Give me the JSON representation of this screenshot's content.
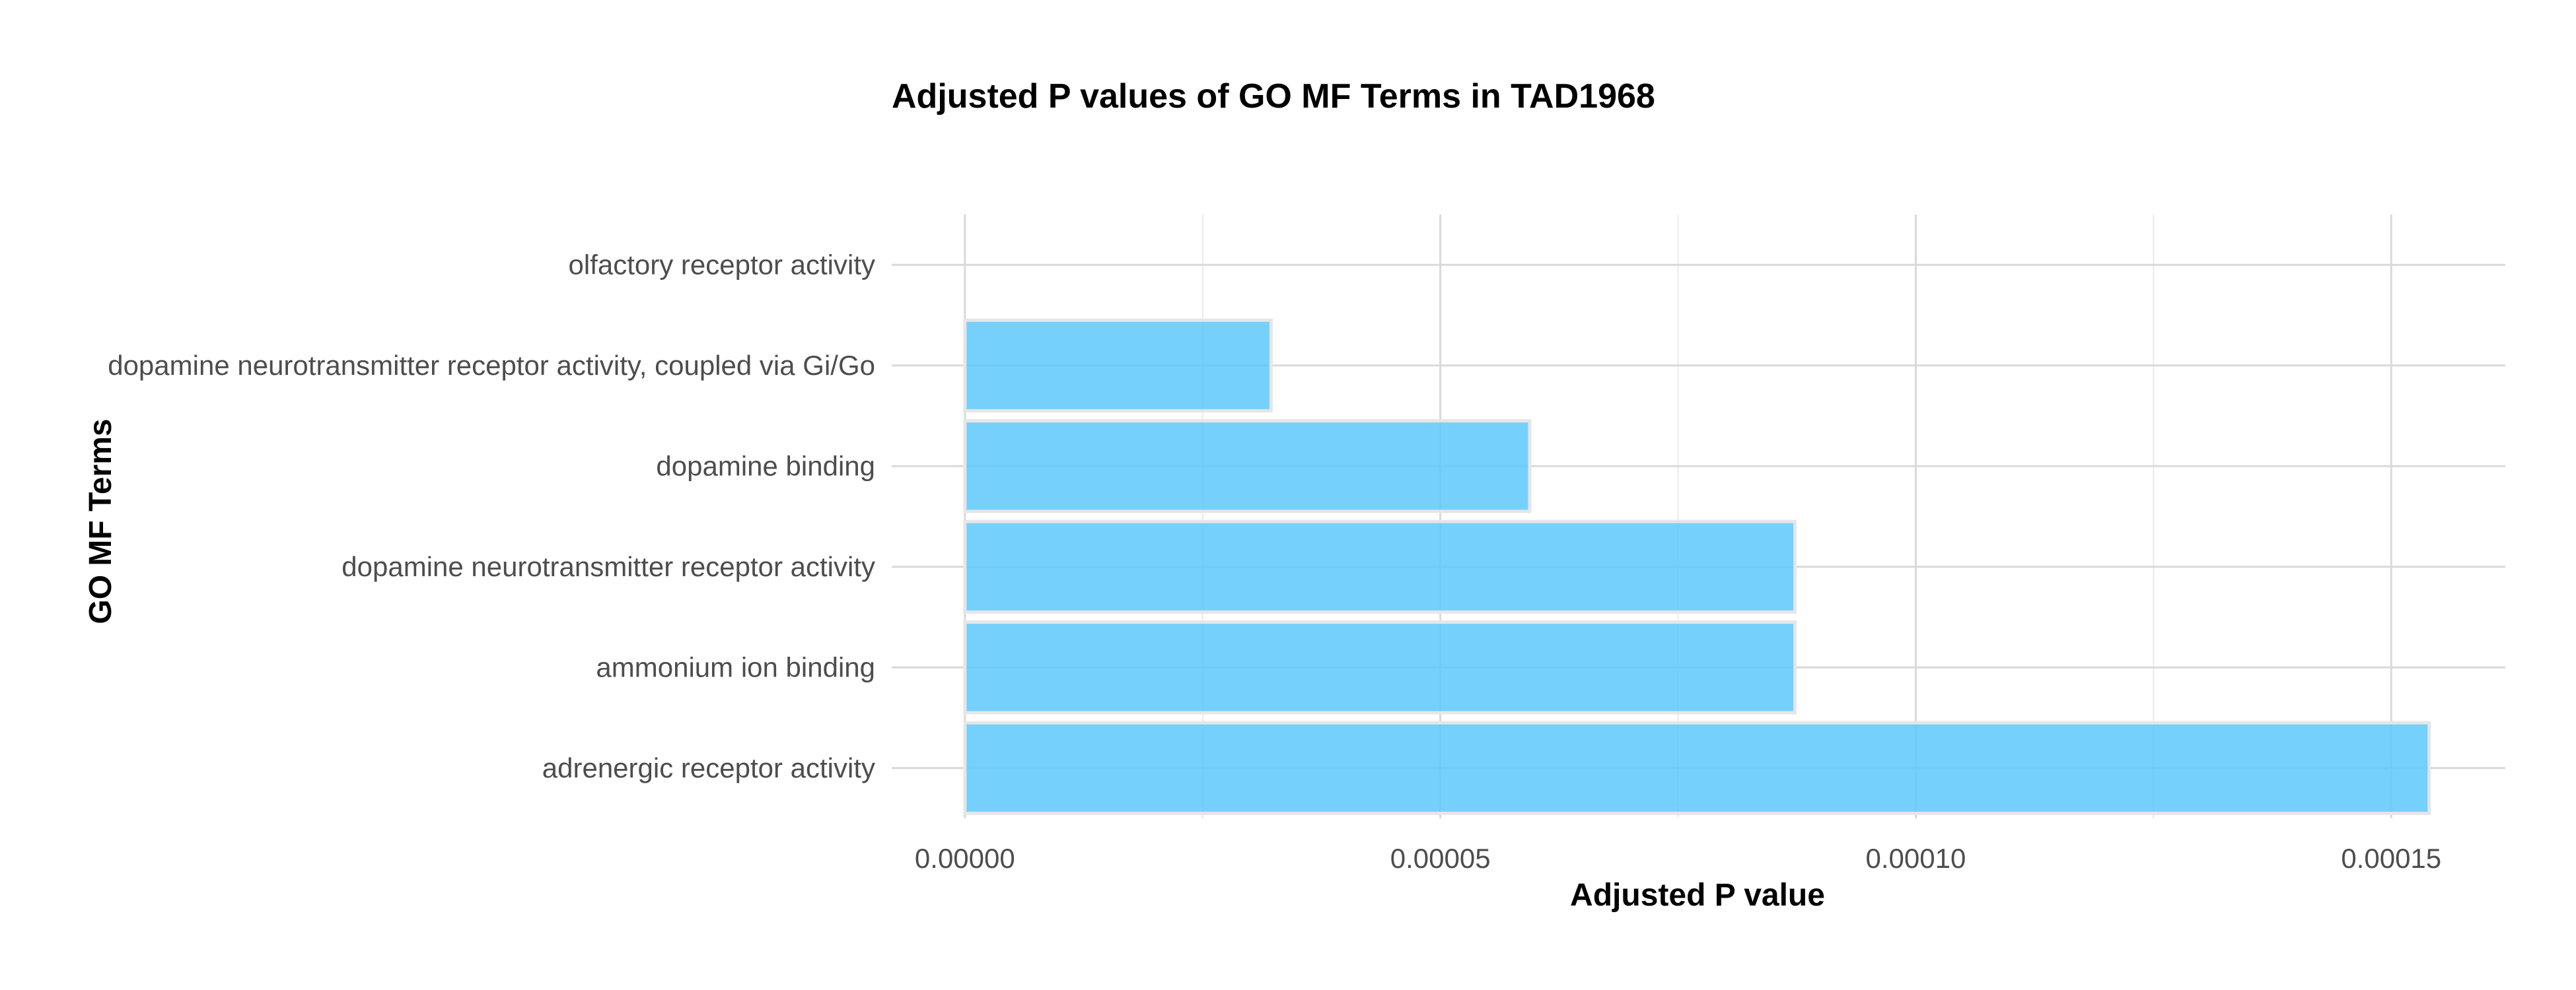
{
  "chart_data": {
    "type": "bar",
    "orientation": "horizontal",
    "title": "Adjusted P values of GO MF Terms in TAD1968",
    "xlabel": "Adjusted P value",
    "ylabel": "GO MF Terms",
    "categories": [
      "olfactory receptor activity",
      "dopamine neurotransmitter receptor activity, coupled via Gi/Go",
      "dopamine binding",
      "dopamine neurotransmitter receptor activity",
      "ammonium ion binding",
      "adrenergic receptor activity"
    ],
    "values": [
      0.0,
      3.22e-05,
      5.94e-05,
      8.73e-05,
      8.73e-05,
      0.000154
    ],
    "xlim": [
      -7.7e-06,
      0.000162
    ],
    "xticks": [
      0.0,
      5e-05,
      0.0001,
      0.00015
    ],
    "xtick_labels": [
      "0.00000",
      "0.00005",
      "0.00010",
      "0.00015"
    ],
    "grid": true,
    "bar_color": "#5ec8fb",
    "bar_stroke": "#e6e6e6",
    "grid_major_color": "#d9d9d9",
    "grid_minor_color": "#ebebeb"
  }
}
